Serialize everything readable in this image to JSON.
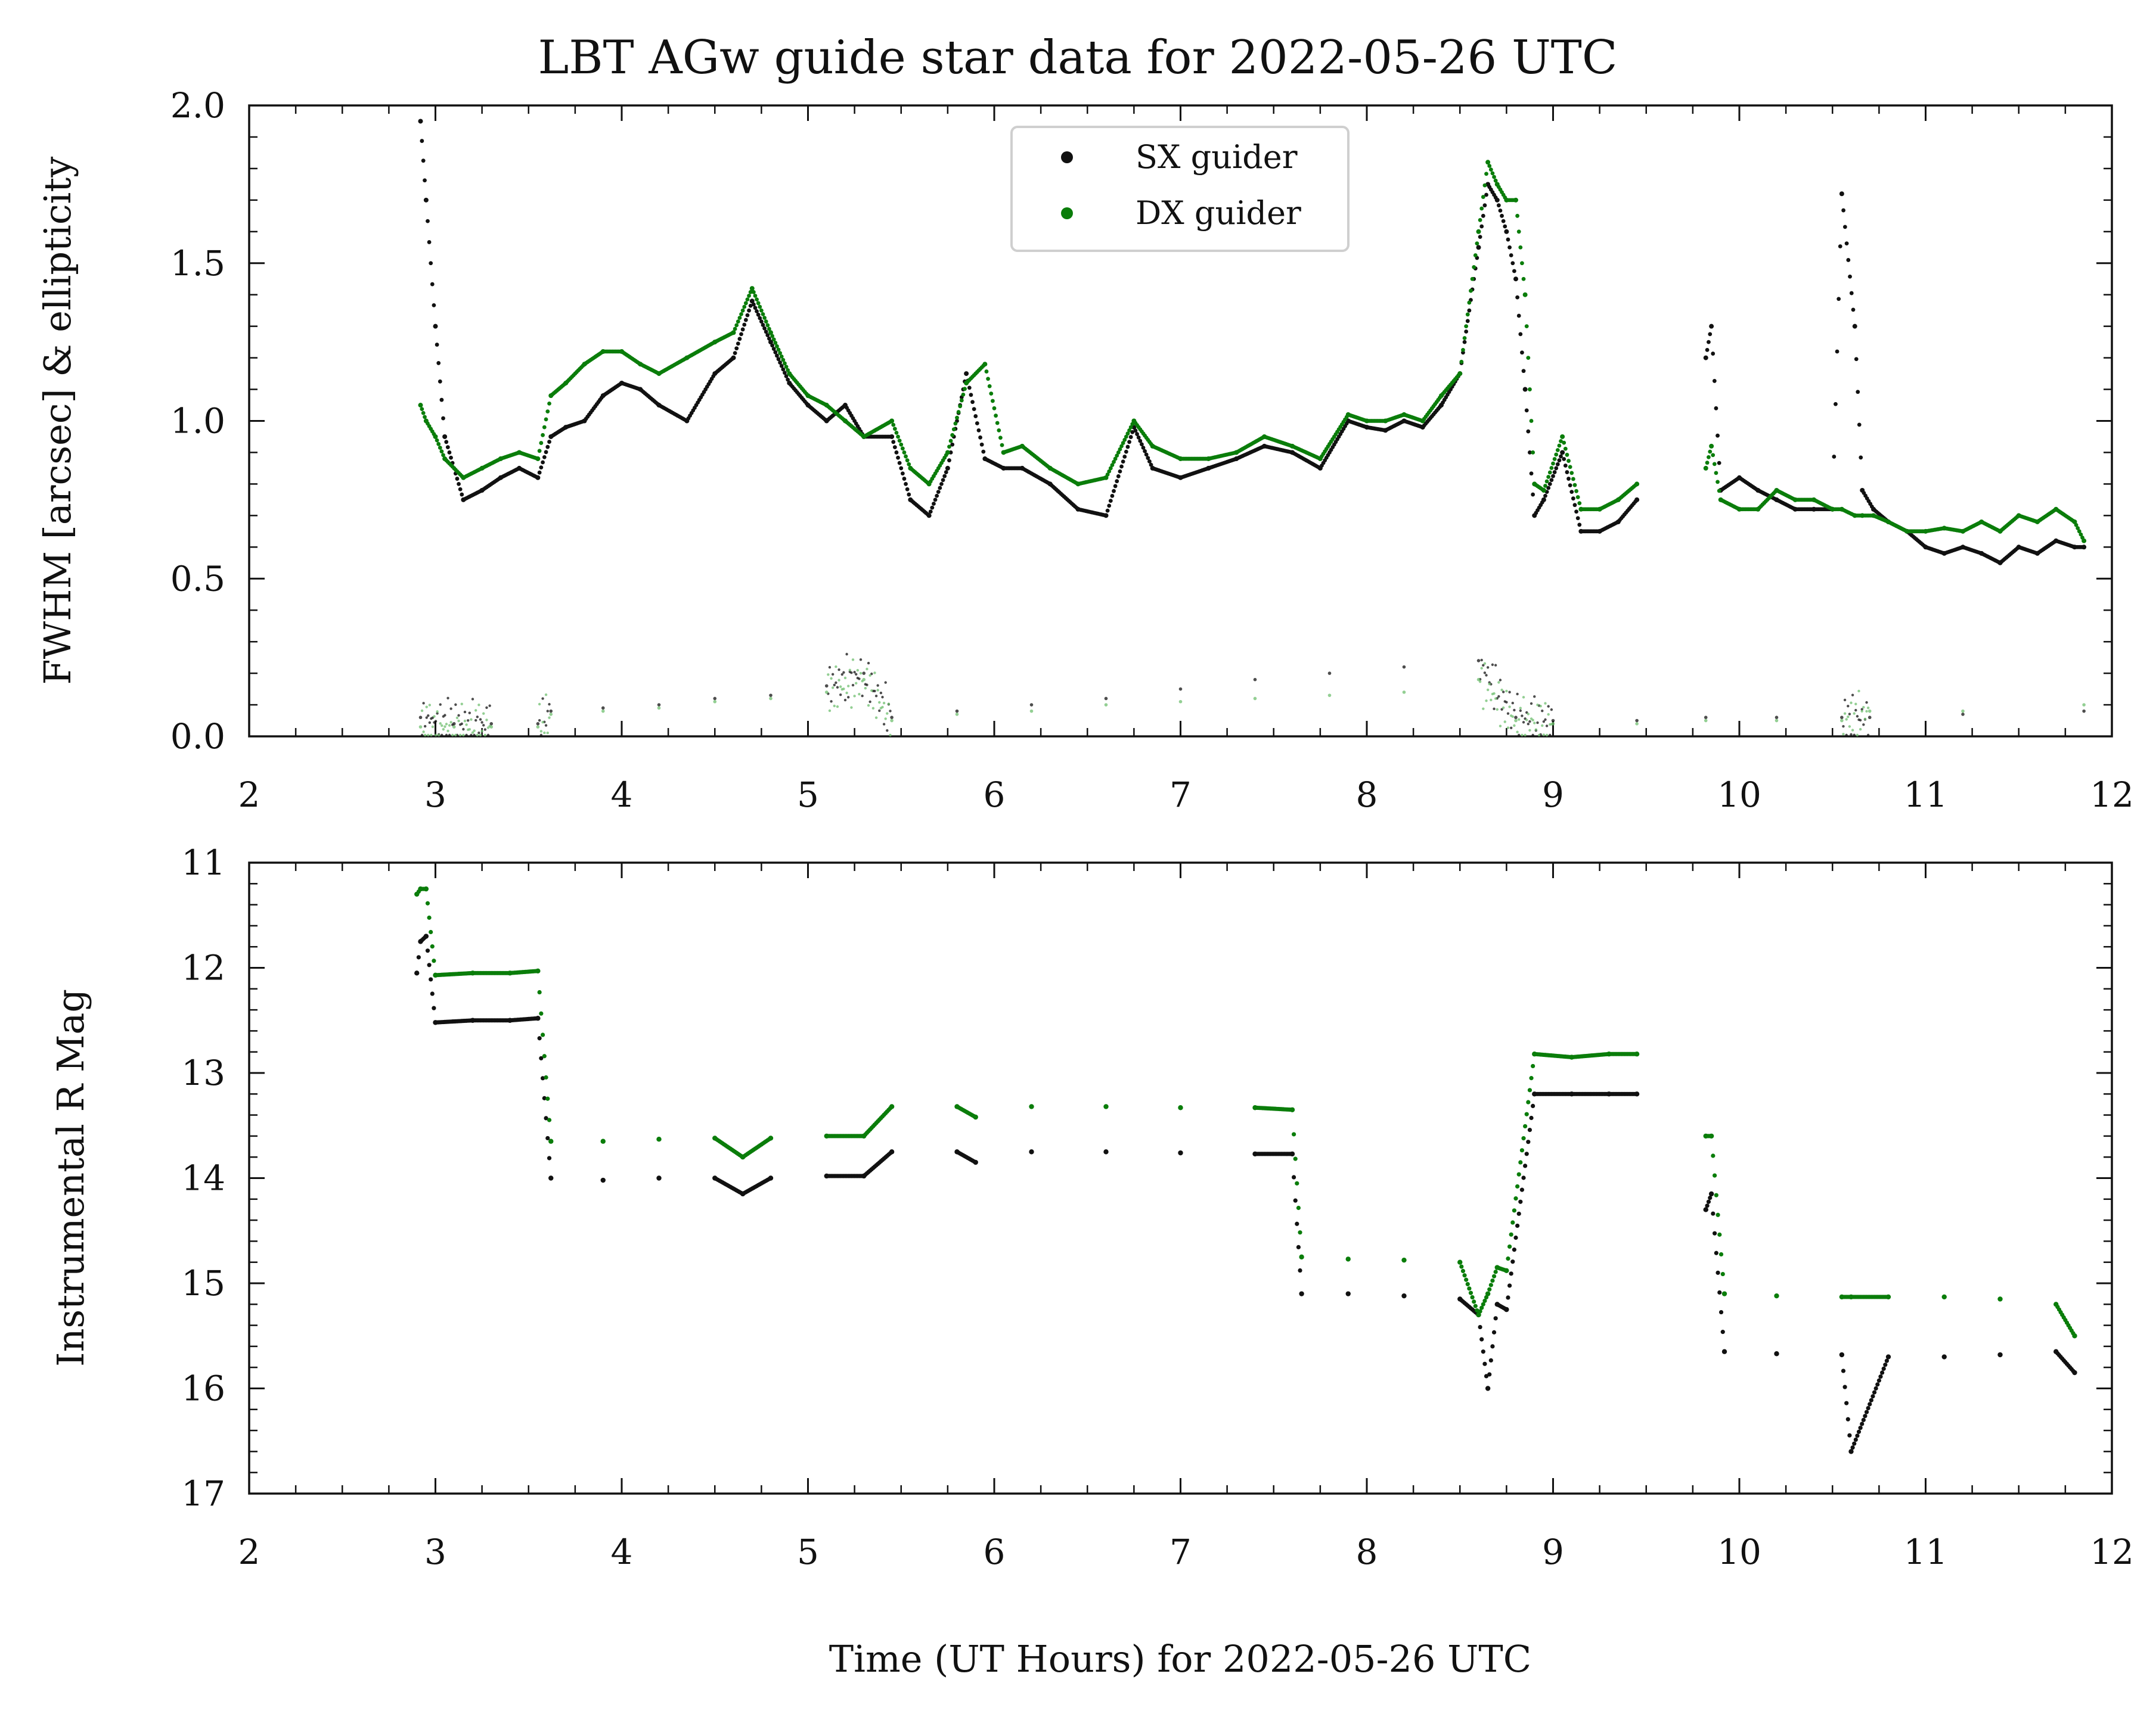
{
  "figure": {
    "title": "LBT AGw guide star data for 2022-05-26 UTC",
    "xlabel": "Time (UT Hours) for 2022-05-26 UTC"
  },
  "colors": {
    "sx": "#111111",
    "dx": "#0a7d0a",
    "dx_light": "#6fbf6f"
  },
  "legend": {
    "placement": "upper-center",
    "entries": [
      "SX guider",
      "DX guider"
    ]
  },
  "chart_data": [
    {
      "type": "scatter",
      "panel": "top",
      "ylabel": "FWHM [arcsec] & ellipticity",
      "xlim": [
        2,
        12
      ],
      "ylim": [
        0.0,
        2.0
      ],
      "x_ticks": [
        2,
        3,
        4,
        5,
        6,
        7,
        8,
        9,
        10,
        11,
        12
      ],
      "x_tick_labels": [
        "2",
        "3",
        "4",
        "5",
        "6",
        "7",
        "8",
        "9",
        "10",
        "11",
        "12"
      ],
      "y_ticks": [
        0.0,
        0.5,
        1.0,
        1.5,
        2.0
      ],
      "y_tick_labels": [
        "0.0",
        "0.5",
        "1.0",
        "1.5",
        "2.0"
      ],
      "grid": false,
      "series": [
        {
          "name": "SX guider",
          "x": [
            2.92,
            2.95,
            3.0,
            3.05,
            3.15,
            3.25,
            3.35,
            3.45,
            3.55,
            3.62,
            3.7,
            3.8,
            3.9,
            4.0,
            4.1,
            4.2,
            4.35,
            4.5,
            4.6,
            4.7,
            4.8,
            4.9,
            5.0,
            5.1,
            5.2,
            5.3,
            5.45,
            5.55,
            5.65,
            5.75,
            5.85,
            5.95,
            6.05,
            6.15,
            6.3,
            6.45,
            6.6,
            6.75,
            6.85,
            7.0,
            7.15,
            7.3,
            7.45,
            7.6,
            7.75,
            7.9,
            8.0,
            8.1,
            8.2,
            8.3,
            8.4,
            8.5,
            8.6,
            8.65,
            8.7,
            8.75,
            8.8,
            8.85,
            8.9,
            8.95,
            9.05,
            9.15,
            9.25,
            9.35,
            9.45,
            9.82,
            9.85,
            9.9,
            10.0,
            10.1,
            10.2,
            10.3,
            10.4,
            10.5,
            10.55,
            10.62,
            10.66,
            10.72,
            10.8,
            10.9,
            11.0,
            11.1,
            11.2,
            11.3,
            11.4,
            11.5,
            11.6,
            11.7,
            11.8,
            11.85
          ],
          "values": [
            1.95,
            1.7,
            1.3,
            0.95,
            0.75,
            0.78,
            0.82,
            0.85,
            0.82,
            0.95,
            0.98,
            1.0,
            1.08,
            1.12,
            1.1,
            1.05,
            1.0,
            1.15,
            1.2,
            1.38,
            1.25,
            1.12,
            1.05,
            1.0,
            1.05,
            0.95,
            0.95,
            0.75,
            0.7,
            0.85,
            1.15,
            0.88,
            0.85,
            0.85,
            0.8,
            0.72,
            0.7,
            0.98,
            0.85,
            0.82,
            0.85,
            0.88,
            0.92,
            0.9,
            0.85,
            1.0,
            0.98,
            0.97,
            1.0,
            0.98,
            1.05,
            1.15,
            1.55,
            1.75,
            1.7,
            1.6,
            1.45,
            1.1,
            0.7,
            0.75,
            0.9,
            0.65,
            0.65,
            0.68,
            0.75,
            1.2,
            1.3,
            0.78,
            0.82,
            0.78,
            0.75,
            0.72,
            0.72,
            0.72,
            1.72,
            1.3,
            0.78,
            0.72,
            0.68,
            0.65,
            0.6,
            0.58,
            0.6,
            0.58,
            0.55,
            0.6,
            0.58,
            0.62,
            0.6,
            0.6
          ]
        },
        {
          "name": "DX guider",
          "x": [
            2.92,
            2.95,
            3.0,
            3.05,
            3.15,
            3.25,
            3.35,
            3.45,
            3.55,
            3.62,
            3.7,
            3.8,
            3.9,
            4.0,
            4.1,
            4.2,
            4.35,
            4.5,
            4.6,
            4.7,
            4.8,
            4.9,
            5.0,
            5.1,
            5.2,
            5.3,
            5.45,
            5.55,
            5.65,
            5.75,
            5.85,
            5.95,
            6.05,
            6.15,
            6.3,
            6.45,
            6.6,
            6.75,
            6.85,
            7.0,
            7.15,
            7.3,
            7.45,
            7.6,
            7.75,
            7.9,
            8.0,
            8.1,
            8.2,
            8.3,
            8.4,
            8.5,
            8.6,
            8.65,
            8.7,
            8.75,
            8.8,
            8.85,
            8.9,
            8.95,
            9.05,
            9.15,
            9.25,
            9.35,
            9.45,
            9.82,
            9.85,
            9.9,
            10.0,
            10.1,
            10.2,
            10.3,
            10.4,
            10.5,
            10.55,
            10.62,
            10.66,
            10.72,
            10.8,
            10.9,
            11.0,
            11.1,
            11.2,
            11.3,
            11.4,
            11.5,
            11.6,
            11.7,
            11.8,
            11.85
          ],
          "values": [
            1.05,
            1.0,
            0.95,
            0.88,
            0.82,
            0.85,
            0.88,
            0.9,
            0.88,
            1.08,
            1.12,
            1.18,
            1.22,
            1.22,
            1.18,
            1.15,
            1.2,
            1.25,
            1.28,
            1.42,
            1.28,
            1.15,
            1.08,
            1.05,
            1.0,
            0.95,
            1.0,
            0.85,
            0.8,
            0.9,
            1.12,
            1.18,
            0.9,
            0.92,
            0.85,
            0.8,
            0.82,
            1.0,
            0.92,
            0.88,
            0.88,
            0.9,
            0.95,
            0.92,
            0.88,
            1.02,
            1.0,
            1.0,
            1.02,
            1.0,
            1.08,
            1.15,
            1.6,
            1.82,
            1.75,
            1.7,
            1.7,
            1.4,
            0.8,
            0.78,
            0.95,
            0.72,
            0.72,
            0.75,
            0.8,
            0.85,
            0.92,
            0.75,
            0.72,
            0.72,
            0.78,
            0.75,
            0.75,
            0.72,
            0.72,
            0.7,
            0.7,
            0.7,
            0.68,
            0.65,
            0.65,
            0.66,
            0.65,
            0.68,
            0.65,
            0.7,
            0.68,
            0.72,
            0.68,
            0.62
          ]
        },
        {
          "name": "SX guider",
          "x": [
            2.92,
            3.1,
            3.3,
            3.55,
            3.62,
            3.9,
            4.2,
            4.5,
            4.8,
            5.1,
            5.3,
            5.45,
            5.8,
            6.2,
            6.6,
            7.0,
            7.4,
            7.8,
            8.2,
            8.6,
            8.8,
            9.0,
            9.45,
            9.82,
            10.2,
            10.55,
            10.7,
            11.2,
            11.85
          ],
          "values": [
            0.06,
            0.04,
            0.04,
            0.04,
            0.08,
            0.09,
            0.1,
            0.12,
            0.13,
            0.16,
            0.2,
            0.06,
            0.08,
            0.1,
            0.12,
            0.15,
            0.18,
            0.2,
            0.22,
            0.24,
            0.06,
            0.05,
            0.05,
            0.06,
            0.06,
            0.06,
            0.06,
            0.07,
            0.08
          ]
        },
        {
          "name": "DX guider",
          "x": [
            2.92,
            3.1,
            3.3,
            3.55,
            3.62,
            3.9,
            4.2,
            4.5,
            4.8,
            5.1,
            5.3,
            5.45,
            5.8,
            6.2,
            6.6,
            7.0,
            7.4,
            7.8,
            8.2,
            8.6,
            8.8,
            9.0,
            9.45,
            9.82,
            10.2,
            10.55,
            10.7,
            11.2,
            11.85
          ],
          "values": [
            0.03,
            0.03,
            0.03,
            0.03,
            0.07,
            0.08,
            0.09,
            0.11,
            0.12,
            0.14,
            0.18,
            0.05,
            0.07,
            0.08,
            0.1,
            0.11,
            0.12,
            0.13,
            0.14,
            0.18,
            0.05,
            0.04,
            0.04,
            0.05,
            0.05,
            0.05,
            0.08,
            0.08,
            0.1
          ]
        }
      ]
    },
    {
      "type": "scatter",
      "panel": "bottom",
      "ylabel": "Instrumental R Mag",
      "xlim": [
        2,
        12
      ],
      "ylim": [
        17,
        11
      ],
      "y_inverted": true,
      "x_ticks": [
        2,
        3,
        4,
        5,
        6,
        7,
        8,
        9,
        10,
        11,
        12
      ],
      "x_tick_labels": [
        "2",
        "3",
        "4",
        "5",
        "6",
        "7",
        "8",
        "9",
        "10",
        "11",
        "12"
      ],
      "y_ticks": [
        11,
        12,
        13,
        14,
        15,
        16,
        17
      ],
      "y_tick_labels": [
        "11",
        "12",
        "13",
        "14",
        "15",
        "16",
        "17"
      ],
      "grid": false,
      "series": [
        {
          "name": "SX guider",
          "x": [
            2.9,
            2.92,
            2.95,
            3.0,
            3.2,
            3.4,
            3.55,
            3.62,
            3.9,
            4.2,
            4.5,
            4.65,
            4.8,
            5.1,
            5.3,
            5.45,
            5.8,
            5.9,
            6.2,
            6.6,
            7.0,
            7.4,
            7.6,
            7.65,
            7.9,
            8.2,
            8.5,
            8.6,
            8.65,
            8.7,
            8.75,
            8.9,
            9.1,
            9.3,
            9.45,
            9.82,
            9.85,
            9.92,
            10.2,
            10.55,
            10.6,
            10.8,
            11.1,
            11.4,
            11.7,
            11.8
          ],
          "values": [
            12.05,
            11.75,
            11.7,
            12.52,
            12.5,
            12.5,
            12.48,
            14.0,
            14.02,
            14.0,
            14.0,
            14.15,
            14.0,
            13.98,
            13.98,
            13.75,
            13.75,
            13.85,
            13.75,
            13.75,
            13.76,
            13.77,
            13.77,
            15.1,
            15.1,
            15.12,
            15.15,
            15.3,
            16.0,
            15.2,
            15.25,
            13.2,
            13.2,
            13.2,
            13.2,
            14.3,
            14.15,
            15.65,
            15.67,
            15.68,
            16.6,
            15.7,
            15.7,
            15.68,
            15.65,
            15.85
          ]
        },
        {
          "name": "DX guider",
          "x": [
            2.9,
            2.92,
            2.95,
            3.0,
            3.2,
            3.4,
            3.55,
            3.62,
            3.9,
            4.2,
            4.5,
            4.65,
            4.8,
            5.1,
            5.3,
            5.45,
            5.8,
            5.9,
            6.2,
            6.6,
            7.0,
            7.4,
            7.6,
            7.65,
            7.9,
            8.2,
            8.5,
            8.6,
            8.65,
            8.7,
            8.75,
            8.9,
            9.1,
            9.3,
            9.45,
            9.82,
            9.85,
            9.92,
            10.2,
            10.55,
            10.6,
            10.8,
            11.1,
            11.4,
            11.7,
            11.8
          ],
          "values": [
            11.3,
            11.25,
            11.25,
            12.07,
            12.05,
            12.05,
            12.03,
            13.65,
            13.65,
            13.63,
            13.62,
            13.8,
            13.62,
            13.6,
            13.6,
            13.32,
            13.32,
            13.42,
            13.32,
            13.32,
            13.33,
            13.33,
            13.35,
            14.75,
            14.77,
            14.78,
            14.8,
            15.3,
            15.1,
            14.85,
            14.88,
            12.82,
            12.85,
            12.82,
            12.82,
            13.6,
            13.6,
            15.1,
            15.12,
            15.13,
            15.13,
            15.13,
            15.13,
            15.15,
            15.2,
            15.5
          ]
        }
      ]
    }
  ]
}
